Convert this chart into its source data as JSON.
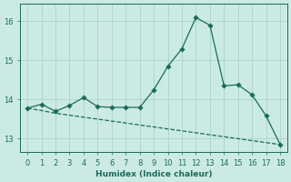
{
  "xlabel": "Humidex (Indice chaleur)",
  "bg_color": "#cceae4",
  "line_color": "#1a6b5a",
  "grid_color": "#aad4cc",
  "xlim": [
    -0.5,
    18.5
  ],
  "ylim": [
    12.65,
    16.45
  ],
  "xticks": [
    0,
    1,
    2,
    3,
    4,
    5,
    6,
    7,
    8,
    9,
    10,
    11,
    12,
    13,
    14,
    15,
    16,
    17,
    18
  ],
  "yticks": [
    13,
    14,
    15,
    16
  ],
  "series1_x": [
    0,
    1,
    2,
    3,
    4,
    5,
    6,
    7,
    8,
    9,
    10,
    11,
    12,
    13,
    14,
    15,
    16,
    17,
    18
  ],
  "series1_y": [
    13.78,
    13.88,
    13.7,
    13.85,
    14.05,
    13.82,
    13.8,
    13.8,
    13.8,
    14.25,
    14.85,
    15.3,
    16.1,
    15.9,
    14.35,
    14.38,
    14.12,
    13.58,
    12.85
  ],
  "series2_x": [
    0,
    1,
    2,
    3,
    4,
    5,
    6,
    7,
    8,
    9,
    10,
    11,
    12,
    13,
    14,
    15,
    16,
    17,
    18
  ],
  "series2_y": [
    13.78,
    13.72,
    13.65,
    13.6,
    13.55,
    13.5,
    13.45,
    13.4,
    13.35,
    13.3,
    13.25,
    13.2,
    13.15,
    13.1,
    13.05,
    13.0,
    12.95,
    12.9,
    12.85
  ]
}
